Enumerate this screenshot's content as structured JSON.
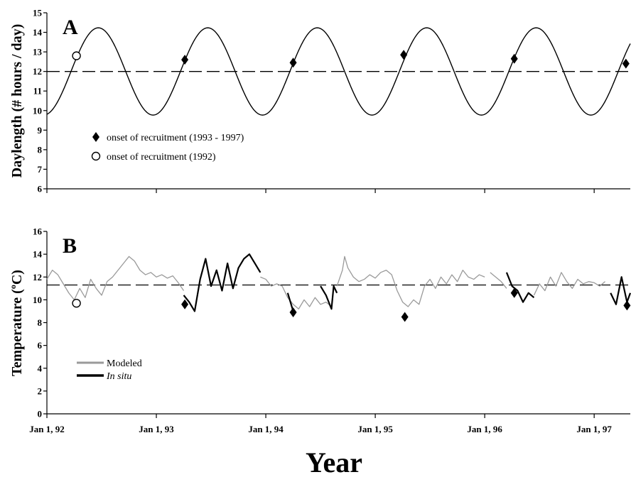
{
  "chart_data": [
    {
      "type": "line",
      "panel": "A",
      "ylabel": "Daylength (# hours / day)",
      "ylim": [
        6,
        15
      ],
      "yticks": [
        6,
        7,
        8,
        9,
        10,
        11,
        12,
        13,
        14,
        15
      ],
      "xlim": [
        1992.0,
        1997.33
      ],
      "series": [
        {
          "kind": "sine",
          "mean": 12.0,
          "amplitude": 2.23,
          "peak_year_fraction": 0.47
        }
      ],
      "reference_line": {
        "y": 12.0,
        "style": "dashed"
      },
      "markers": [
        {
          "name": "onset of recruitment (1993 - 1997)",
          "shape": "diamond",
          "points": [
            [
              1993.26,
              12.6
            ],
            [
              1994.25,
              12.45
            ],
            [
              1995.26,
              12.85
            ],
            [
              1996.27,
              12.65
            ],
            [
              1997.29,
              12.4
            ]
          ]
        },
        {
          "name": "onset of recruitment (1992)",
          "shape": "open-circle",
          "points": [
            [
              1992.27,
              12.8
            ]
          ]
        }
      ]
    },
    {
      "type": "line",
      "panel": "B",
      "ylabel_main": "Temperature (",
      "ylabel_sup": "o",
      "ylabel_end": "C)",
      "ylim": [
        0,
        16
      ],
      "yticks": [
        0,
        2,
        4,
        6,
        8,
        10,
        12,
        14,
        16
      ],
      "xlim": [
        1992.0,
        1997.33
      ],
      "reference_line": {
        "y": 11.3,
        "style": "dashed"
      },
      "series": [
        {
          "name": "Modeled",
          "color": "#9a9a9a",
          "segments": [
            [
              [
                1992.0,
                11.8
              ],
              [
                1992.05,
                12.6
              ],
              [
                1992.1,
                12.2
              ],
              [
                1992.15,
                11.4
              ],
              [
                1992.2,
                10.6
              ],
              [
                1992.25,
                10.0
              ],
              [
                1992.3,
                11.0
              ],
              [
                1992.35,
                10.2
              ],
              [
                1992.4,
                11.8
              ],
              [
                1992.45,
                11.0
              ],
              [
                1992.5,
                10.4
              ],
              [
                1992.55,
                11.6
              ],
              [
                1992.6,
                12.0
              ],
              [
                1992.65,
                12.6
              ],
              [
                1992.7,
                13.2
              ],
              [
                1992.75,
                13.8
              ],
              [
                1992.8,
                13.4
              ],
              [
                1992.85,
                12.6
              ],
              [
                1992.9,
                12.2
              ],
              [
                1992.95,
                12.4
              ],
              [
                1993.0,
                12.0
              ],
              [
                1993.05,
                12.2
              ],
              [
                1993.1,
                11.9
              ],
              [
                1993.15,
                12.1
              ],
              [
                1993.2,
                11.5
              ],
              [
                1993.25,
                10.8
              ]
            ],
            [
              [
                1993.95,
                12.0
              ],
              [
                1994.0,
                11.8
              ],
              [
                1994.05,
                11.2
              ],
              [
                1994.1,
                11.4
              ],
              [
                1994.15,
                11.2
              ],
              [
                1994.2,
                10.2
              ],
              [
                1994.25,
                9.6
              ],
              [
                1994.3,
                9.2
              ],
              [
                1994.35,
                10.0
              ],
              [
                1994.4,
                9.4
              ],
              [
                1994.45,
                10.2
              ],
              [
                1994.5,
                9.6
              ],
              [
                1994.55,
                9.8
              ],
              [
                1994.6,
                9.4
              ]
            ],
            [
              [
                1994.65,
                11.2
              ],
              [
                1994.7,
                12.6
              ],
              [
                1994.72,
                13.8
              ],
              [
                1994.75,
                12.8
              ],
              [
                1994.8,
                12.0
              ],
              [
                1994.85,
                11.6
              ],
              [
                1994.9,
                11.8
              ],
              [
                1994.95,
                12.2
              ],
              [
                1995.0,
                11.9
              ],
              [
                1995.05,
                12.4
              ],
              [
                1995.1,
                12.6
              ],
              [
                1995.15,
                12.2
              ],
              [
                1995.2,
                10.8
              ],
              [
                1995.25,
                9.8
              ],
              [
                1995.3,
                9.4
              ],
              [
                1995.35,
                10.0
              ],
              [
                1995.4,
                9.6
              ],
              [
                1995.45,
                11.2
              ],
              [
                1995.5,
                11.8
              ],
              [
                1995.55,
                11.0
              ],
              [
                1995.6,
                12.0
              ],
              [
                1995.65,
                11.4
              ],
              [
                1995.7,
                12.2
              ],
              [
                1995.75,
                11.6
              ],
              [
                1995.8,
                12.6
              ],
              [
                1995.85,
                12.0
              ],
              [
                1995.9,
                11.8
              ],
              [
                1995.95,
                12.2
              ],
              [
                1996.0,
                12.0
              ]
            ],
            [
              [
                1996.05,
                12.4
              ],
              [
                1996.1,
                12.0
              ],
              [
                1996.15,
                11.6
              ],
              [
                1996.2,
                11.0
              ]
            ],
            [
              [
                1996.45,
                10.4
              ],
              [
                1996.5,
                11.4
              ],
              [
                1996.55,
                10.8
              ],
              [
                1996.6,
                12.0
              ],
              [
                1996.65,
                11.2
              ],
              [
                1996.7,
                12.4
              ],
              [
                1996.75,
                11.6
              ],
              [
                1996.8,
                11.0
              ],
              [
                1996.85,
                11.8
              ],
              [
                1996.9,
                11.4
              ],
              [
                1996.95,
                11.6
              ],
              [
                1997.0,
                11.5
              ],
              [
                1997.05,
                11.2
              ],
              [
                1997.1,
                11.6
              ]
            ]
          ]
        },
        {
          "name": "In situ",
          "color": "#000000",
          "segments": [
            [
              [
                1993.25,
                10.4
              ],
              [
                1993.3,
                9.8
              ],
              [
                1993.35,
                9.0
              ],
              [
                1993.4,
                11.8
              ],
              [
                1993.45,
                13.6
              ],
              [
                1993.5,
                11.2
              ],
              [
                1993.55,
                12.6
              ],
              [
                1993.6,
                10.8
              ],
              [
                1993.65,
                13.2
              ],
              [
                1993.7,
                11.0
              ],
              [
                1993.75,
                12.8
              ],
              [
                1993.8,
                13.6
              ],
              [
                1993.85,
                14.0
              ],
              [
                1993.9,
                13.2
              ],
              [
                1993.95,
                12.4
              ]
            ],
            [
              [
                1994.2,
                10.6
              ],
              [
                1994.25,
                9.0
              ]
            ],
            [
              [
                1994.5,
                11.2
              ],
              [
                1994.55,
                10.4
              ],
              [
                1994.6,
                9.2
              ],
              [
                1994.62,
                11.2
              ],
              [
                1994.65,
                10.6
              ]
            ],
            [
              [
                1996.2,
                12.4
              ],
              [
                1996.25,
                11.2
              ],
              [
                1996.3,
                10.8
              ],
              [
                1996.35,
                9.8
              ],
              [
                1996.4,
                10.6
              ],
              [
                1996.45,
                10.2
              ]
            ],
            [
              [
                1997.15,
                10.6
              ],
              [
                1997.2,
                9.6
              ],
              [
                1997.25,
                12.0
              ],
              [
                1997.3,
                9.8
              ],
              [
                1997.33,
                10.6
              ]
            ]
          ]
        }
      ],
      "markers": [
        {
          "shape": "diamond",
          "points": [
            [
              1993.26,
              9.6
            ],
            [
              1994.25,
              8.9
            ],
            [
              1995.27,
              8.5
            ],
            [
              1996.27,
              10.6
            ],
            [
              1997.3,
              9.5
            ]
          ]
        },
        {
          "shape": "open-circle",
          "points": [
            [
              1992.27,
              9.7
            ]
          ]
        }
      ]
    }
  ],
  "x_axis": {
    "tick_values": [
      1992.0,
      1993.0,
      1994.0,
      1995.0,
      1996.0,
      1997.0
    ],
    "tick_labels": [
      "Jan 1, 92",
      "Jan 1, 93",
      "Jan 1, 94",
      "Jan 1, 95",
      "Jan 1, 96",
      "Jan 1, 97"
    ],
    "title": "Year"
  },
  "legend_a": {
    "diamond_label": "onset of recruitment (1993 - 1997)",
    "circle_label": "onset of recruitment (1992)"
  },
  "legend_b": {
    "modeled_label": "Modeled",
    "insitu_label": "In situ"
  }
}
